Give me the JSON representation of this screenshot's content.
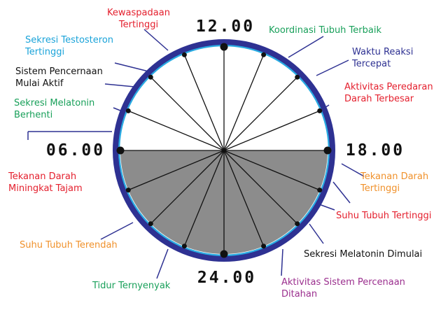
{
  "times": {
    "top": "12.00",
    "right": "18.00",
    "bottom": "24.00",
    "left": "06.00"
  },
  "colors": {
    "ring": "#2e3192",
    "inner_ring": "#29abe2",
    "night_fill": "#8c8c8c",
    "spoke": "#111111",
    "red": "#e4202e",
    "cyan": "#1aa3d9",
    "black": "#111111",
    "green": "#19a05a",
    "navy": "#2e3192",
    "orange": "#f0912b",
    "purple": "#9b2f8e"
  },
  "labels": [
    {
      "id": "kewaspadaan",
      "lines": [
        "Kewaspadaan",
        "Tertinggi"
      ],
      "color": "red"
    },
    {
      "id": "testosteron",
      "lines": [
        "Sekresi Testosteron",
        "Tertinggi"
      ],
      "color": "cyan"
    },
    {
      "id": "pencernaan-aktif",
      "lines": [
        "Sistem Pencernaan",
        "Mulai Aktif"
      ],
      "color": "black"
    },
    {
      "id": "melatonin-berhenti",
      "lines": [
        "Sekresi Melatonin",
        "Berhenti"
      ],
      "color": "green"
    },
    {
      "id": "tekanan-tajam",
      "lines": [
        "Tekanan Darah",
        "Miningkat Tajam"
      ],
      "color": "red"
    },
    {
      "id": "suhu-terendah",
      "lines": [
        "Suhu Tubuh Terendah"
      ],
      "color": "orange"
    },
    {
      "id": "tidur",
      "lines": [
        "Tidur Ternyenyak"
      ],
      "color": "green"
    },
    {
      "id": "pencernaan-ditahan",
      "lines": [
        "Aktivitas Sistem Percenaan",
        "Ditahan"
      ],
      "color": "purple"
    },
    {
      "id": "melatonin-dimulai",
      "lines": [
        "Sekresi Melatonin Dimulai"
      ],
      "color": "black"
    },
    {
      "id": "suhu-tertinggi",
      "lines": [
        "Suhu Tubuh Tertinggi"
      ],
      "color": "red"
    },
    {
      "id": "tekanan-tertinggi",
      "lines": [
        "Tekanan Darah",
        "Tertinggi"
      ],
      "color": "orange"
    },
    {
      "id": "peredaran-darah",
      "lines": [
        "Aktivitas Peredaran",
        "Darah Terbesar"
      ],
      "color": "red"
    },
    {
      "id": "reaksi",
      "lines": [
        "Waktu Reaksi",
        "Tercepat"
      ],
      "color": "navy"
    },
    {
      "id": "koordinasi",
      "lines": [
        "Koordinasi Tubuh Terbaik"
      ],
      "color": "green"
    }
  ]
}
